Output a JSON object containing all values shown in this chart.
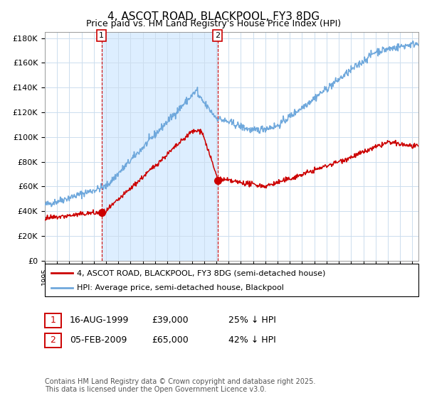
{
  "title": "4, ASCOT ROAD, BLACKPOOL, FY3 8DG",
  "subtitle": "Price paid vs. HM Land Registry's House Price Index (HPI)",
  "title_fontsize": 11,
  "subtitle_fontsize": 9,
  "ylabel_ticks": [
    "£0",
    "£20K",
    "£40K",
    "£60K",
    "£80K",
    "£100K",
    "£120K",
    "£140K",
    "£160K",
    "£180K"
  ],
  "ytick_values": [
    0,
    20000,
    40000,
    60000,
    80000,
    100000,
    120000,
    140000,
    160000,
    180000
  ],
  "ylim": [
    0,
    185000
  ],
  "xlim_start": 1995.0,
  "xlim_end": 2025.5,
  "marker1_date": 1999.62,
  "marker1_value": 39000,
  "marker2_date": 2009.09,
  "marker2_value": 65000,
  "marker1_label": "1",
  "marker2_label": "2",
  "table_row1": [
    "1",
    "16-AUG-1999",
    "£39,000",
    "25% ↓ HPI"
  ],
  "table_row2": [
    "2",
    "05-FEB-2009",
    "£65,000",
    "42% ↓ HPI"
  ],
  "legend_line1": "4, ASCOT ROAD, BLACKPOOL, FY3 8DG (semi-detached house)",
  "legend_line2": "HPI: Average price, semi-detached house, Blackpool",
  "hpi_color": "#6fa8dc",
  "price_color": "#cc0000",
  "bg_shaded_color": "#ddeeff",
  "grid_color": "#ccddee",
  "footnote": "Contains HM Land Registry data © Crown copyright and database right 2025.\nThis data is licensed under the Open Government Licence v3.0.",
  "footnote_fontsize": 7,
  "box_color": "#cc0000"
}
